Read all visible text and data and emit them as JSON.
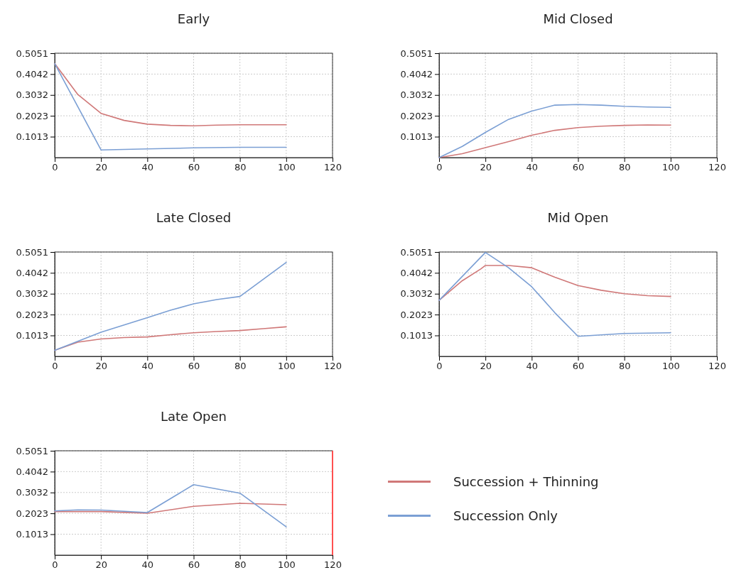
{
  "chart_data": [
    {
      "type": "line",
      "title": "Early",
      "xlim": [
        0,
        120
      ],
      "xticks": [
        0,
        20,
        40,
        60,
        80,
        100,
        120
      ],
      "ylim": [
        0,
        0.5051
      ],
      "yticks": [
        0.1013,
        0.2023,
        0.3032,
        0.4042,
        0.5051
      ],
      "grid": true,
      "series": [
        {
          "color": "#d07878",
          "x": [
            0,
            10,
            20,
            30,
            40,
            50,
            60,
            70,
            80,
            90,
            100
          ],
          "values": [
            0.455,
            0.305,
            0.214,
            0.18,
            0.162,
            0.156,
            0.154,
            0.157,
            0.159,
            0.159,
            0.159
          ]
        },
        {
          "color": "#7b9fd4",
          "x": [
            0,
            20,
            40,
            60,
            80,
            100
          ],
          "values": [
            0.455,
            0.037,
            0.042,
            0.047,
            0.05,
            0.05
          ]
        }
      ]
    },
    {
      "type": "line",
      "title": "Mid Closed",
      "xlim": [
        0,
        120
      ],
      "xticks": [
        0,
        20,
        40,
        60,
        80,
        100,
        120
      ],
      "ylim": [
        0,
        0.5051
      ],
      "yticks": [
        0.1013,
        0.2023,
        0.3032,
        0.4042,
        0.5051
      ],
      "grid": true,
      "series": [
        {
          "color": "#d07878",
          "x": [
            0,
            10,
            20,
            30,
            40,
            50,
            60,
            70,
            80,
            90,
            100
          ],
          "values": [
            0,
            0.019,
            0.048,
            0.077,
            0.108,
            0.132,
            0.145,
            0.152,
            0.156,
            0.158,
            0.157
          ]
        },
        {
          "color": "#7b9fd4",
          "x": [
            0,
            10,
            20,
            30,
            40,
            50,
            60,
            70,
            80,
            90,
            100
          ],
          "values": [
            0,
            0.054,
            0.122,
            0.185,
            0.225,
            0.254,
            0.257,
            0.254,
            0.248,
            0.245,
            0.243
          ]
        }
      ]
    },
    {
      "type": "line",
      "title": "Late Closed",
      "xlim": [
        0,
        120
      ],
      "xticks": [
        0,
        20,
        40,
        60,
        80,
        100,
        120
      ],
      "ylim": [
        0,
        0.5051
      ],
      "yticks": [
        0.1013,
        0.2023,
        0.3032,
        0.4042,
        0.5051
      ],
      "grid": true,
      "series": [
        {
          "color": "#d07878",
          "x": [
            0,
            10,
            20,
            30,
            40,
            50,
            60,
            70,
            80,
            90,
            100
          ],
          "values": [
            0.029,
            0.069,
            0.084,
            0.091,
            0.094,
            0.105,
            0.114,
            0.12,
            0.125,
            0.134,
            0.143
          ]
        },
        {
          "color": "#7b9fd4",
          "x": [
            0,
            20,
            40,
            50,
            60,
            70,
            80,
            100
          ],
          "values": [
            0.029,
            0.117,
            0.187,
            0.223,
            0.254,
            0.275,
            0.29,
            0.455
          ]
        }
      ]
    },
    {
      "type": "line",
      "title": "Mid Open",
      "xlim": [
        0,
        120
      ],
      "xticks": [
        0,
        20,
        40,
        60,
        80,
        100,
        120
      ],
      "ylim": [
        0,
        0.5051
      ],
      "yticks": [
        0.1013,
        0.2023,
        0.3032,
        0.4042,
        0.5051
      ],
      "grid": true,
      "series": [
        {
          "color": "#d07878",
          "x": [
            0,
            10,
            18,
            20,
            30,
            40,
            50,
            60,
            70,
            80,
            90,
            100
          ],
          "values": [
            0.271,
            0.366,
            0.423,
            0.44,
            0.44,
            0.429,
            0.383,
            0.343,
            0.32,
            0.303,
            0.294,
            0.29
          ]
        },
        {
          "color": "#7b9fd4",
          "x": [
            0,
            20,
            30,
            40,
            50,
            60,
            80,
            100
          ],
          "values": [
            0.271,
            0.503,
            0.429,
            0.337,
            0.211,
            0.097,
            0.111,
            0.114
          ]
        }
      ]
    },
    {
      "type": "line",
      "title": "Late Open",
      "xlim": [
        0,
        120
      ],
      "xticks": [
        0,
        20,
        40,
        60,
        80,
        100,
        120
      ],
      "ylim": [
        0,
        0.5051
      ],
      "yticks": [
        0.1013,
        0.2023,
        0.3032,
        0.4042,
        0.5051
      ],
      "grid": true,
      "legend": "right",
      "ref_lines": [
        {
          "axis": "x",
          "value": 120,
          "color": "#ff5050"
        }
      ],
      "series": [
        {
          "name": "Succession + Thinning",
          "color": "#d07878",
          "x": [
            0,
            20,
            40,
            60,
            80,
            100
          ],
          "values": [
            0.211,
            0.211,
            0.203,
            0.236,
            0.251,
            0.244
          ]
        },
        {
          "name": "Succession Only",
          "color": "#7b9fd4",
          "x": [
            0,
            10,
            20,
            40,
            60,
            80,
            100
          ],
          "values": [
            0.214,
            0.219,
            0.218,
            0.206,
            0.341,
            0.3,
            0.137
          ]
        }
      ]
    }
  ]
}
